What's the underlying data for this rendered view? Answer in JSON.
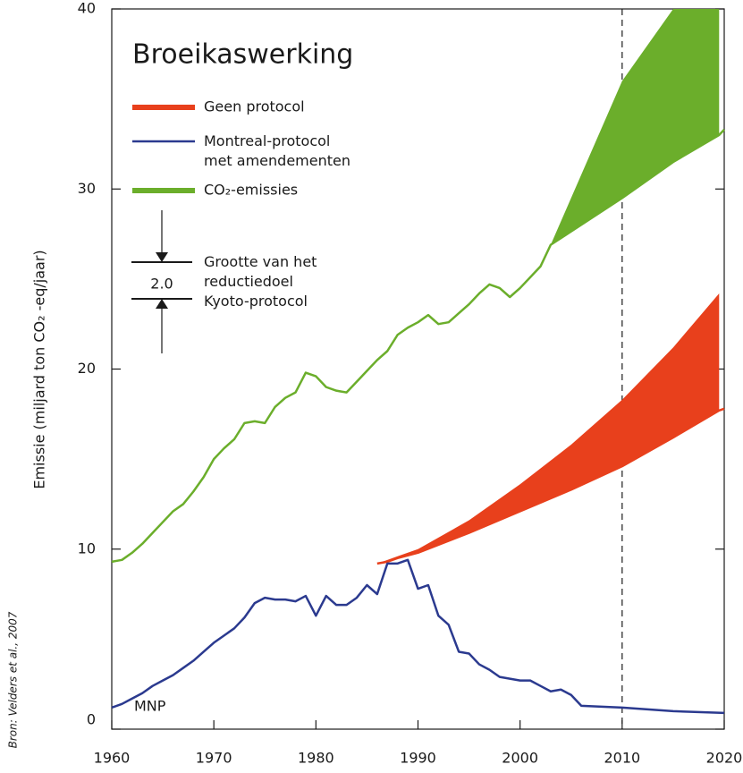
{
  "chart_data": {
    "type": "line",
    "title": "Broeikaswerking",
    "y_label": "Emissie (miljard ton CO₂ -eq/jaar)",
    "source": "Bron: Velders et al., 2007",
    "credit": "MNP",
    "annotation": {
      "text": "Grootte van het\nreductiedoel\nKyoto-protocol",
      "gap_label": "2.0"
    },
    "xlim": [
      1960,
      2020
    ],
    "xticks": [
      1960,
      1970,
      1980,
      1990,
      2000,
      2010,
      2020
    ],
    "ylim": [
      0,
      40
    ],
    "yticks": [
      0,
      10,
      20,
      30,
      40
    ],
    "vlines": [
      2010
    ],
    "series": [
      {
        "name": "Geen protocol",
        "color": "#e8401c",
        "style": "band",
        "x": [
          1986,
          1987,
          1988,
          1990,
          1995,
          2000,
          2005,
          2010,
          2015,
          2019.5,
          2020
        ],
        "values": [
          9.2,
          9.3,
          9.5,
          9.8,
          10.9,
          12.1,
          13.3,
          14.6,
          16.2,
          17.7,
          17.8
        ],
        "upper": [
          9.2,
          9.4,
          9.6,
          10.0,
          11.6,
          13.6,
          15.8,
          18.3,
          21.2,
          24.2,
          null
        ]
      },
      {
        "name": "Montreal-protocol\nmet amendementen",
        "color": "#2b3a8f",
        "style": "line",
        "x": [
          1960,
          1961,
          1962,
          1963,
          1964,
          1965,
          1966,
          1967,
          1968,
          1969,
          1970,
          1971,
          1972,
          1973,
          1974,
          1975,
          1976,
          1977,
          1978,
          1979,
          1980,
          1981,
          1982,
          1983,
          1984,
          1985,
          1986,
          1987,
          1988,
          1989,
          1990,
          1991,
          1992,
          1993,
          1994,
          1995,
          1996,
          1997,
          1998,
          1999,
          2000,
          2001,
          2002,
          2003,
          2004,
          2005,
          2006,
          2010,
          2015,
          2020
        ],
        "values": [
          1.2,
          1.4,
          1.7,
          2.0,
          2.4,
          2.7,
          3.0,
          3.4,
          3.8,
          4.3,
          4.8,
          5.2,
          5.6,
          6.2,
          7.0,
          7.3,
          7.2,
          7.2,
          7.1,
          7.4,
          6.3,
          7.4,
          6.9,
          6.9,
          7.3,
          8.0,
          7.5,
          9.2,
          9.2,
          9.4,
          7.8,
          8.0,
          6.3,
          5.8,
          4.3,
          4.2,
          3.6,
          3.3,
          2.9,
          2.8,
          2.7,
          2.7,
          2.4,
          2.1,
          2.2,
          1.9,
          1.3,
          1.2,
          1.0,
          0.9
        ]
      },
      {
        "name": "CO₂-emissies",
        "color": "#6bae2b",
        "style": "band",
        "x": [
          1960,
          1961,
          1962,
          1963,
          1964,
          1965,
          1966,
          1967,
          1968,
          1969,
          1970,
          1971,
          1972,
          1973,
          1974,
          1975,
          1976,
          1977,
          1978,
          1979,
          1980,
          1981,
          1982,
          1983,
          1984,
          1985,
          1986,
          1987,
          1988,
          1989,
          1990,
          1991,
          1992,
          1993,
          1994,
          1995,
          1996,
          1997,
          1998,
          1999,
          2000,
          2001,
          2002,
          2003,
          2010,
          2015,
          2019.5,
          2020
        ],
        "values": [
          9.3,
          9.4,
          9.8,
          10.3,
          10.9,
          11.5,
          12.1,
          12.5,
          13.2,
          14.0,
          15.0,
          15.6,
          16.1,
          17.0,
          17.1,
          17.0,
          17.9,
          18.4,
          18.7,
          19.8,
          19.6,
          19.0,
          18.8,
          18.7,
          19.3,
          19.9,
          20.5,
          21.0,
          21.9,
          22.3,
          22.6,
          23.0,
          22.5,
          22.6,
          23.1,
          23.6,
          24.2,
          24.7,
          24.5,
          24.0,
          24.5,
          25.1,
          25.7,
          26.9,
          29.5,
          31.5,
          33.0,
          33.3
        ],
        "upper": [
          null,
          null,
          null,
          null,
          null,
          null,
          null,
          null,
          null,
          null,
          null,
          null,
          null,
          null,
          null,
          null,
          null,
          null,
          null,
          null,
          null,
          null,
          null,
          null,
          null,
          null,
          null,
          null,
          null,
          null,
          null,
          null,
          null,
          null,
          null,
          null,
          null,
          null,
          null,
          null,
          null,
          null,
          null,
          26.9,
          36.0,
          40,
          40,
          null
        ]
      }
    ]
  }
}
